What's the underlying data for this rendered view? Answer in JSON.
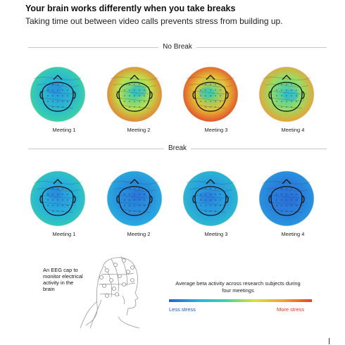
{
  "title": "Your brain works differently when you take breaks",
  "subtitle": "Taking time out between video calls prevents stress from building up.",
  "sections": [
    {
      "label": "No Break",
      "maps": [
        {
          "label": "Meeting 1",
          "level": 0.3
        },
        {
          "label": "Meeting 2",
          "level": 0.65
        },
        {
          "label": "Meeting 3",
          "level": 0.8
        },
        {
          "label": "Meeting 4",
          "level": 0.6
        }
      ]
    },
    {
      "label": "Break",
      "maps": [
        {
          "label": "Meeting 1",
          "level": 0.25
        },
        {
          "label": "Meeting 2",
          "level": 0.15
        },
        {
          "label": "Meeting 3",
          "level": 0.2
        },
        {
          "label": "Meeting 4",
          "level": 0.1
        }
      ]
    }
  ],
  "eeg_note": "An EEG cap to monitor electrical activity in the brain",
  "legend": {
    "caption": "Average beta activity across research subjects during four meetings",
    "low_label": "Less stress",
    "high_label": "More stress",
    "low_color": "#2a5fd9",
    "high_color": "#e0452a"
  }
}
